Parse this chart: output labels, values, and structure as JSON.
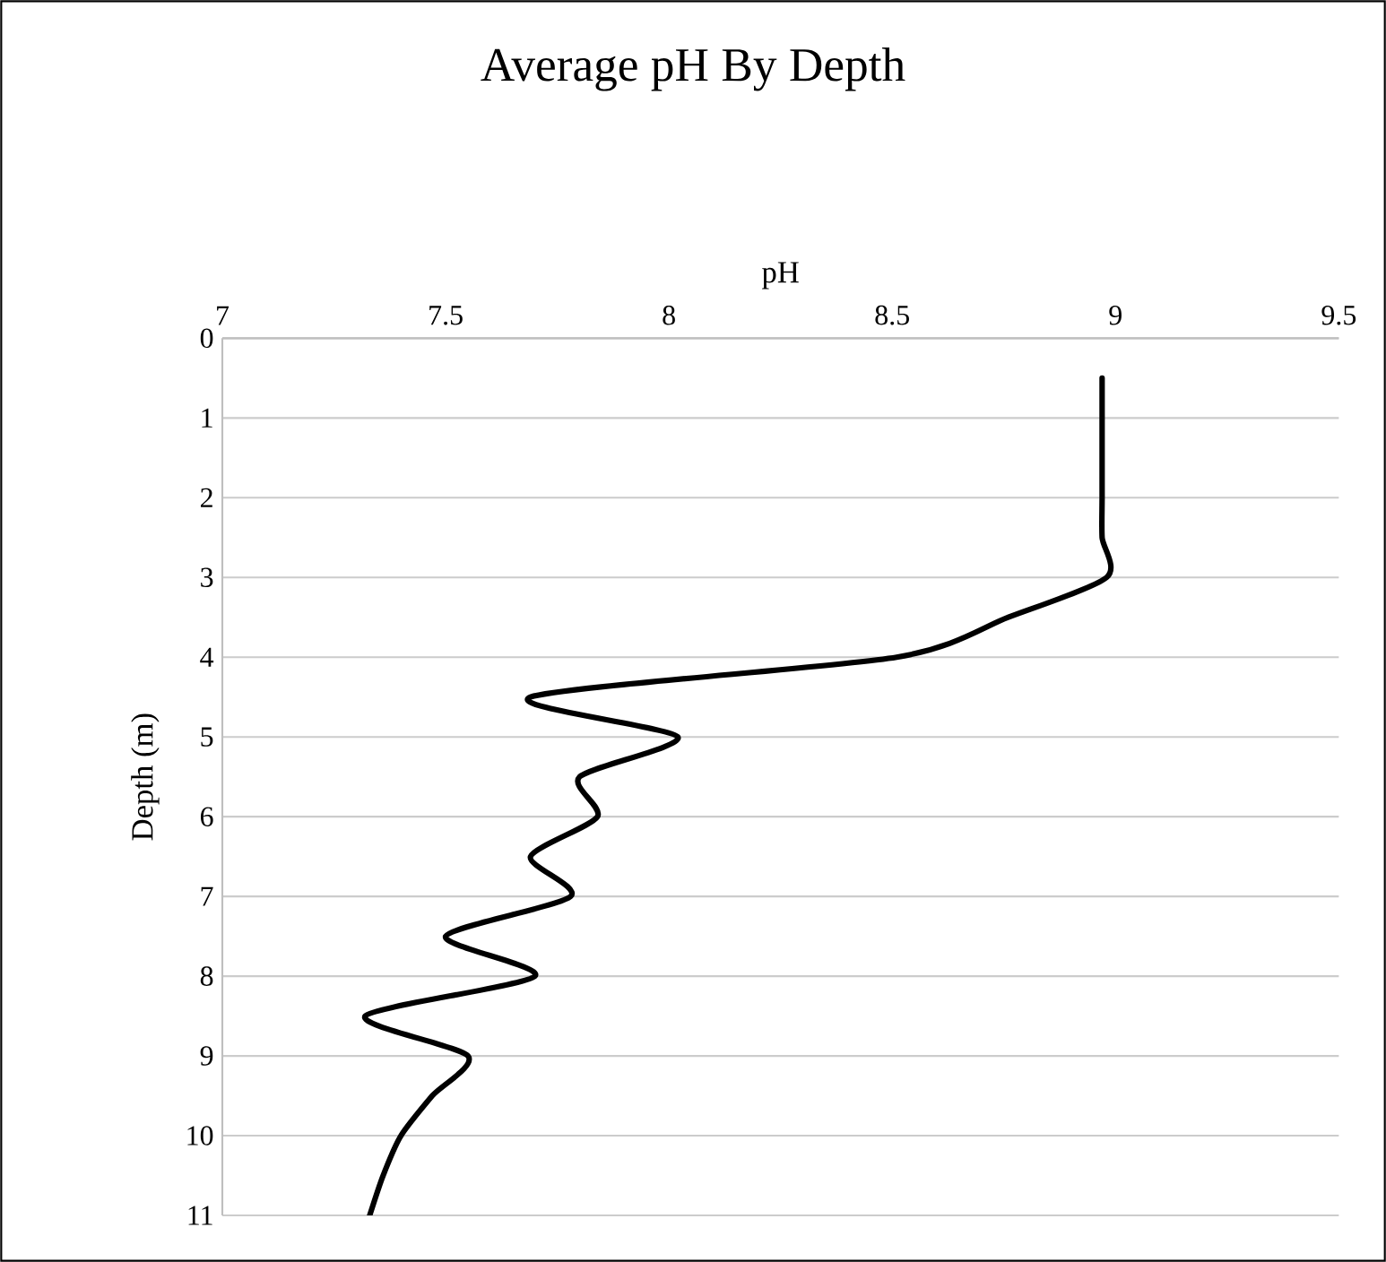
{
  "chart_data": {
    "type": "line",
    "title": "Average pH By Depth",
    "xlabel": "pH",
    "ylabel": "Depth (m)",
    "x": [
      8.97,
      8.97,
      8.97,
      8.97,
      8.97,
      8.98,
      8.76,
      8.51,
      7.69,
      8.02,
      7.8,
      7.84,
      7.69,
      7.78,
      7.5,
      7.7,
      7.32,
      7.55,
      7.47,
      7.4,
      7.36,
      7.33
    ],
    "series": [
      {
        "color": "#000000",
        "values": [
          0.5,
          1,
          1.5,
          2,
          2.5,
          3,
          3.5,
          4,
          4.5,
          5,
          5.5,
          6,
          6.5,
          7,
          7.5,
          8,
          8.5,
          9,
          9.5,
          10,
          10.5,
          11
        ]
      }
    ],
    "xlim": [
      7,
      9.5
    ],
    "xticks": [
      7,
      7.5,
      8,
      8.5,
      9,
      9.5
    ],
    "ylim": [
      11,
      0
    ],
    "yticks": [
      0,
      1,
      2,
      3,
      4,
      5,
      6,
      7,
      8,
      9,
      10,
      11
    ],
    "grid": "y",
    "marker": "none",
    "line_style": "solid"
  }
}
